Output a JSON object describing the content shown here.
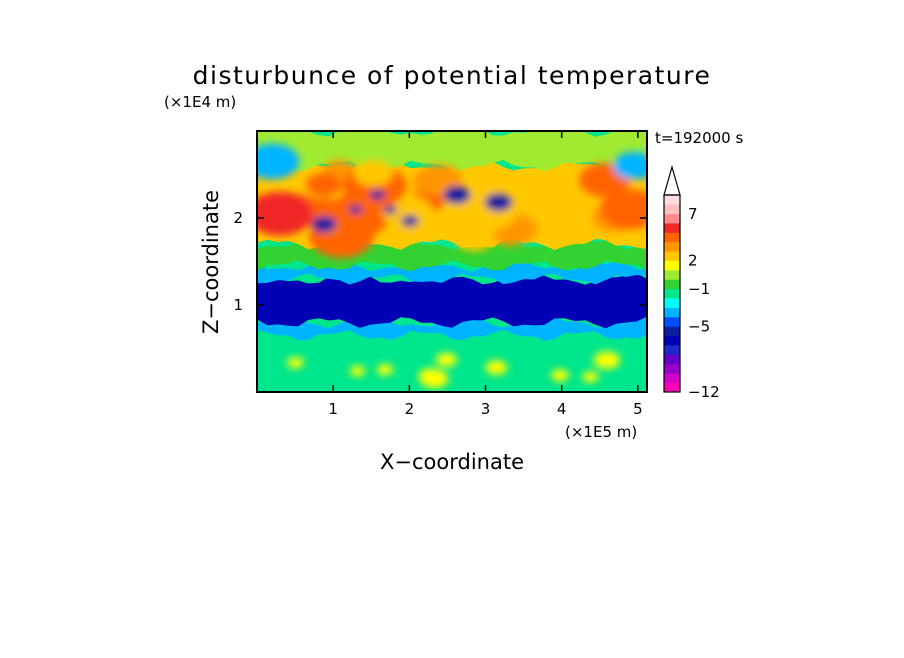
{
  "chart_data": {
    "type": "heatmap",
    "title": "disturbunce of potential temperature",
    "xlabel": "X−coordinate",
    "ylabel": "Z−coordinate",
    "x_unit_label": "(×1E5 m)",
    "y_unit_label": "(×1E4 m)",
    "time_label": "t=192000 s",
    "xlim": [
      0,
      5.12
    ],
    "ylim": [
      0,
      3.0
    ],
    "x_ticks": [
      1,
      2,
      3,
      4,
      5
    ],
    "x_tick_labels": [
      "1",
      "2",
      "3",
      "4",
      "5"
    ],
    "y_ticks": [
      1,
      2
    ],
    "y_tick_labels": [
      "1",
      "2"
    ],
    "colorbar": {
      "levels": [
        -12,
        -11,
        -10,
        -9,
        -8,
        -7,
        -6,
        -5,
        -4,
        -3,
        -2,
        -1,
        0,
        1,
        2,
        3,
        4,
        5,
        6,
        7,
        8,
        9,
        10
      ],
      "label_values": [
        -12,
        -5,
        -1,
        2,
        7
      ],
      "labels": [
        "−12",
        "−5",
        "−1",
        "2",
        "7"
      ],
      "extend": "max",
      "colors": [
        "#ff00b4",
        "#d200c8",
        "#9600c8",
        "#6400c8",
        "#1e28c8",
        "#0000b4",
        "#0a1ea0",
        "#0050ff",
        "#00b4ff",
        "#00ffff",
        "#00e68c",
        "#32d232",
        "#a0eb32",
        "#ffff00",
        "#ffc800",
        "#ff9600",
        "#ff6400",
        "#f02828",
        "#ff8c8c",
        "#ffbebe",
        "#ffdcdc"
      ]
    },
    "field_bands": [
      {
        "z_range": [
          0.0,
          0.45
        ],
        "description_value": -1.5
      },
      {
        "z_range": [
          0.45,
          0.65
        ],
        "description_value": -2
      },
      {
        "z_range": [
          0.65,
          0.8
        ],
        "description_value": -4
      },
      {
        "z_range": [
          0.8,
          1.3
        ],
        "description_value": -7
      },
      {
        "z_range": [
          1.3,
          1.45
        ],
        "description_value": -4
      },
      {
        "z_range": [
          1.45,
          1.7
        ],
        "description_value": -1
      },
      {
        "z_range": [
          1.7,
          2.6
        ],
        "description_value": 2
      },
      {
        "z_range": [
          2.6,
          3.0
        ],
        "description_value": 0
      }
    ]
  }
}
